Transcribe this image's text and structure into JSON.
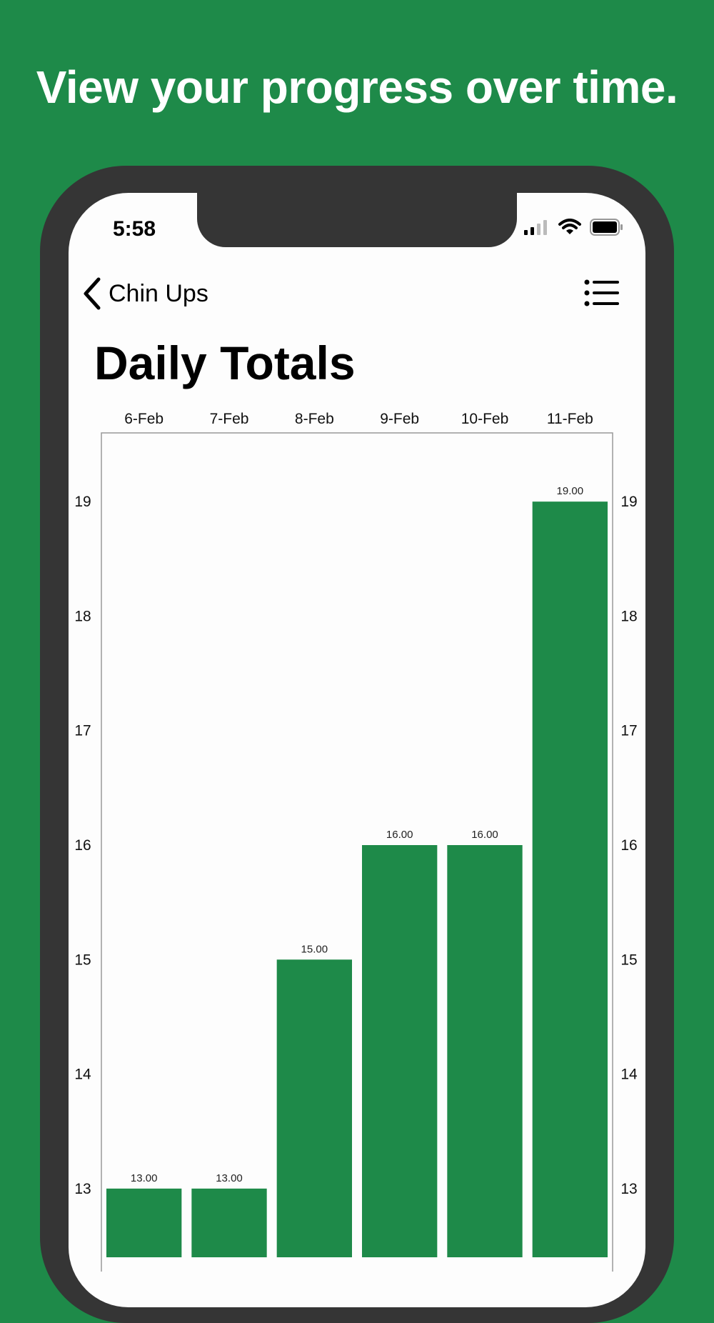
{
  "headline": "View your progress over time.",
  "status_bar": {
    "time": "5:58",
    "icons": [
      "cellular-signal-icon",
      "wifi-icon",
      "battery-icon"
    ]
  },
  "nav": {
    "back_label": "Chin Ups",
    "back_icon": "chevron-left-icon",
    "menu_icon": "list-icon"
  },
  "page_title": "Daily Totals",
  "colors": {
    "background": "#1e8a49",
    "bar": "#1e8a49",
    "frame": "#353535",
    "screen": "#fdfdfd"
  },
  "chart_data": {
    "type": "bar",
    "categories": [
      "6-Feb",
      "7-Feb",
      "8-Feb",
      "9-Feb",
      "10-Feb",
      "11-Feb"
    ],
    "values": [
      13,
      13,
      15,
      16,
      16,
      19
    ],
    "value_labels": [
      "13.00",
      "13.00",
      "15.00",
      "16.00",
      "16.00",
      "19.00"
    ],
    "yticks": [
      13,
      14,
      15,
      16,
      17,
      18,
      19
    ],
    "ylim": [
      12.4,
      19.6
    ],
    "x_axis_position": "top",
    "y_axis_labels": "both-sides",
    "grid": false,
    "title": "",
    "xlabel": "",
    "ylabel": ""
  }
}
